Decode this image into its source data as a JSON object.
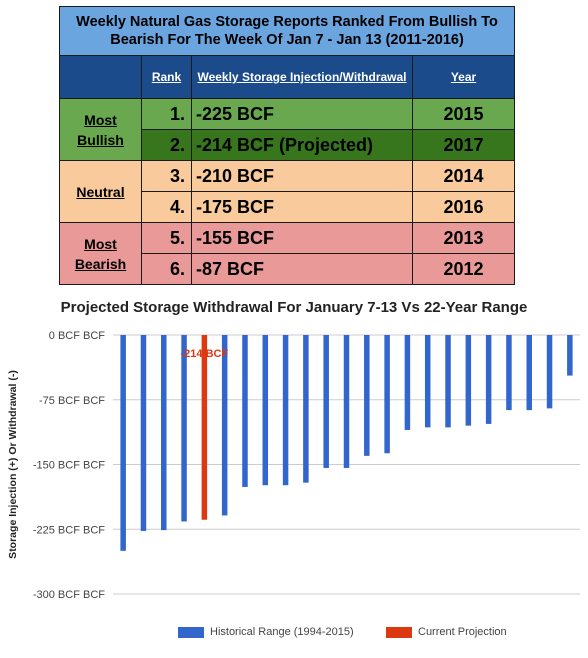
{
  "table": {
    "title": "Weekly Natural Gas Storage Reports Ranked From Bullish To Bearish For The Week Of Jan 7 - Jan 13 (2011-2016)",
    "headers": {
      "rank": "Rank",
      "storage": "Weekly Storage Injection/Withdrawal",
      "year": "Year"
    },
    "groups": [
      {
        "label": "Most Bullish",
        "rows": [
          {
            "rank": "1.",
            "value": "-225 BCF",
            "year": "2015",
            "color": "#6aa84f"
          },
          {
            "rank": "2.",
            "value": "-214 BCF (Projected)",
            "year": "2017",
            "color": "#38761d"
          }
        ],
        "color": "#6aa84f"
      },
      {
        "label": "Neutral",
        "rows": [
          {
            "rank": "3.",
            "value": "-210 BCF",
            "year": "2014",
            "color": "#f9cb9c"
          },
          {
            "rank": "4.",
            "value": "-175 BCF",
            "year": "2016",
            "color": "#f9cb9c"
          }
        ],
        "color": "#f9cb9c"
      },
      {
        "label": "Most Bearish",
        "rows": [
          {
            "rank": "5.",
            "value": "-155 BCF",
            "year": "2013",
            "color": "#ea9999"
          },
          {
            "rank": "6.",
            "value": "-87 BCF",
            "year": "2012",
            "color": "#ea9999"
          }
        ],
        "color": "#ea9999"
      }
    ]
  },
  "chart_data": {
    "type": "bar",
    "title": "Projected Storage Withdrawal For January 7-13 Vs 22-Year Range",
    "ylabel": "Storage Injection (+) Or Withdrawal (-)",
    "xlabel": "",
    "ylim": [
      -300,
      0
    ],
    "yticks": [
      0,
      -75,
      -150,
      -225,
      -300
    ],
    "ytick_labels": [
      "0 BCF BCF",
      "-75 BCF BCF",
      "-150 BCF BCF",
      "-225 BCF BCF",
      "-300 BCF BCF"
    ],
    "grid": true,
    "legend_position": "bottom",
    "series": [
      {
        "name": "Historical Range (1994-2015)",
        "color": "#3366cc",
        "values": [
          -250,
          -227,
          -226,
          -216,
          null,
          -209,
          -176,
          -174,
          -174,
          -171,
          -154,
          -154,
          -140,
          -137,
          -110,
          -107,
          -107,
          -105,
          -103,
          -87,
          -87,
          -85,
          -47
        ]
      },
      {
        "name": "Current Projection",
        "color": "#dc3912",
        "values": [
          null,
          null,
          null,
          null,
          -214,
          null,
          null,
          null,
          null,
          null,
          null,
          null,
          null,
          null,
          null,
          null,
          null,
          null,
          null,
          null,
          null,
          null,
          null
        ]
      }
    ],
    "annotations": [
      {
        "text": "-214 BCF",
        "index": 4,
        "value": -214,
        "color": "#dc3912"
      }
    ]
  }
}
